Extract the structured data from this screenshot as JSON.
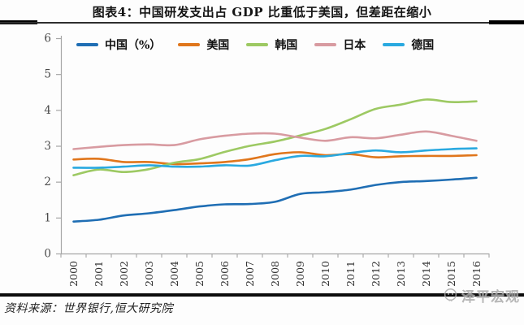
{
  "page": {
    "title": "图表4：中国研发支出占 GDP 比重低于美国，但差距在缩小",
    "source": "资料来源：世界银行,恒大研究院",
    "watermark": "泽平宏观"
  },
  "chart_data": {
    "type": "line",
    "title": "图表4：中国研发支出占 GDP 比重低于美国，但差距在缩小",
    "x": [
      2000,
      2001,
      2002,
      2003,
      2004,
      2005,
      2006,
      2007,
      2008,
      2009,
      2010,
      2011,
      2012,
      2013,
      2014,
      2015,
      2016
    ],
    "series": [
      {
        "name": "中国（%）",
        "color": "#1f6eb4",
        "values": [
          0.89,
          0.94,
          1.06,
          1.12,
          1.21,
          1.31,
          1.37,
          1.38,
          1.44,
          1.66,
          1.71,
          1.78,
          1.91,
          1.99,
          2.02,
          2.06,
          2.11
        ]
      },
      {
        "name": "美国",
        "color": "#e0761c",
        "values": [
          2.62,
          2.64,
          2.55,
          2.55,
          2.49,
          2.51,
          2.55,
          2.63,
          2.77,
          2.82,
          2.74,
          2.77,
          2.68,
          2.71,
          2.72,
          2.72,
          2.74
        ]
      },
      {
        "name": "韩国",
        "color": "#9dc963",
        "values": [
          2.18,
          2.34,
          2.27,
          2.35,
          2.53,
          2.63,
          2.83,
          3.0,
          3.12,
          3.29,
          3.47,
          3.74,
          4.03,
          4.15,
          4.29,
          4.22,
          4.24
        ]
      },
      {
        "name": "日本",
        "color": "#d89ba1",
        "values": [
          2.91,
          2.97,
          3.02,
          3.04,
          3.02,
          3.18,
          3.28,
          3.34,
          3.34,
          3.23,
          3.14,
          3.24,
          3.21,
          3.31,
          3.4,
          3.28,
          3.14
        ]
      },
      {
        "name": "德国",
        "color": "#29a9e0",
        "values": [
          2.39,
          2.39,
          2.42,
          2.46,
          2.42,
          2.42,
          2.46,
          2.45,
          2.6,
          2.72,
          2.71,
          2.8,
          2.87,
          2.82,
          2.87,
          2.91,
          2.93
        ]
      }
    ],
    "xlabel": "",
    "ylabel": "",
    "ylim": [
      0,
      6
    ],
    "yticks": [
      0,
      1,
      2,
      3,
      4,
      5,
      6
    ],
    "grid": false,
    "legend_position": "top",
    "axis_color": "#a6a6a6",
    "tick_label_color": "#4a4a4a"
  }
}
